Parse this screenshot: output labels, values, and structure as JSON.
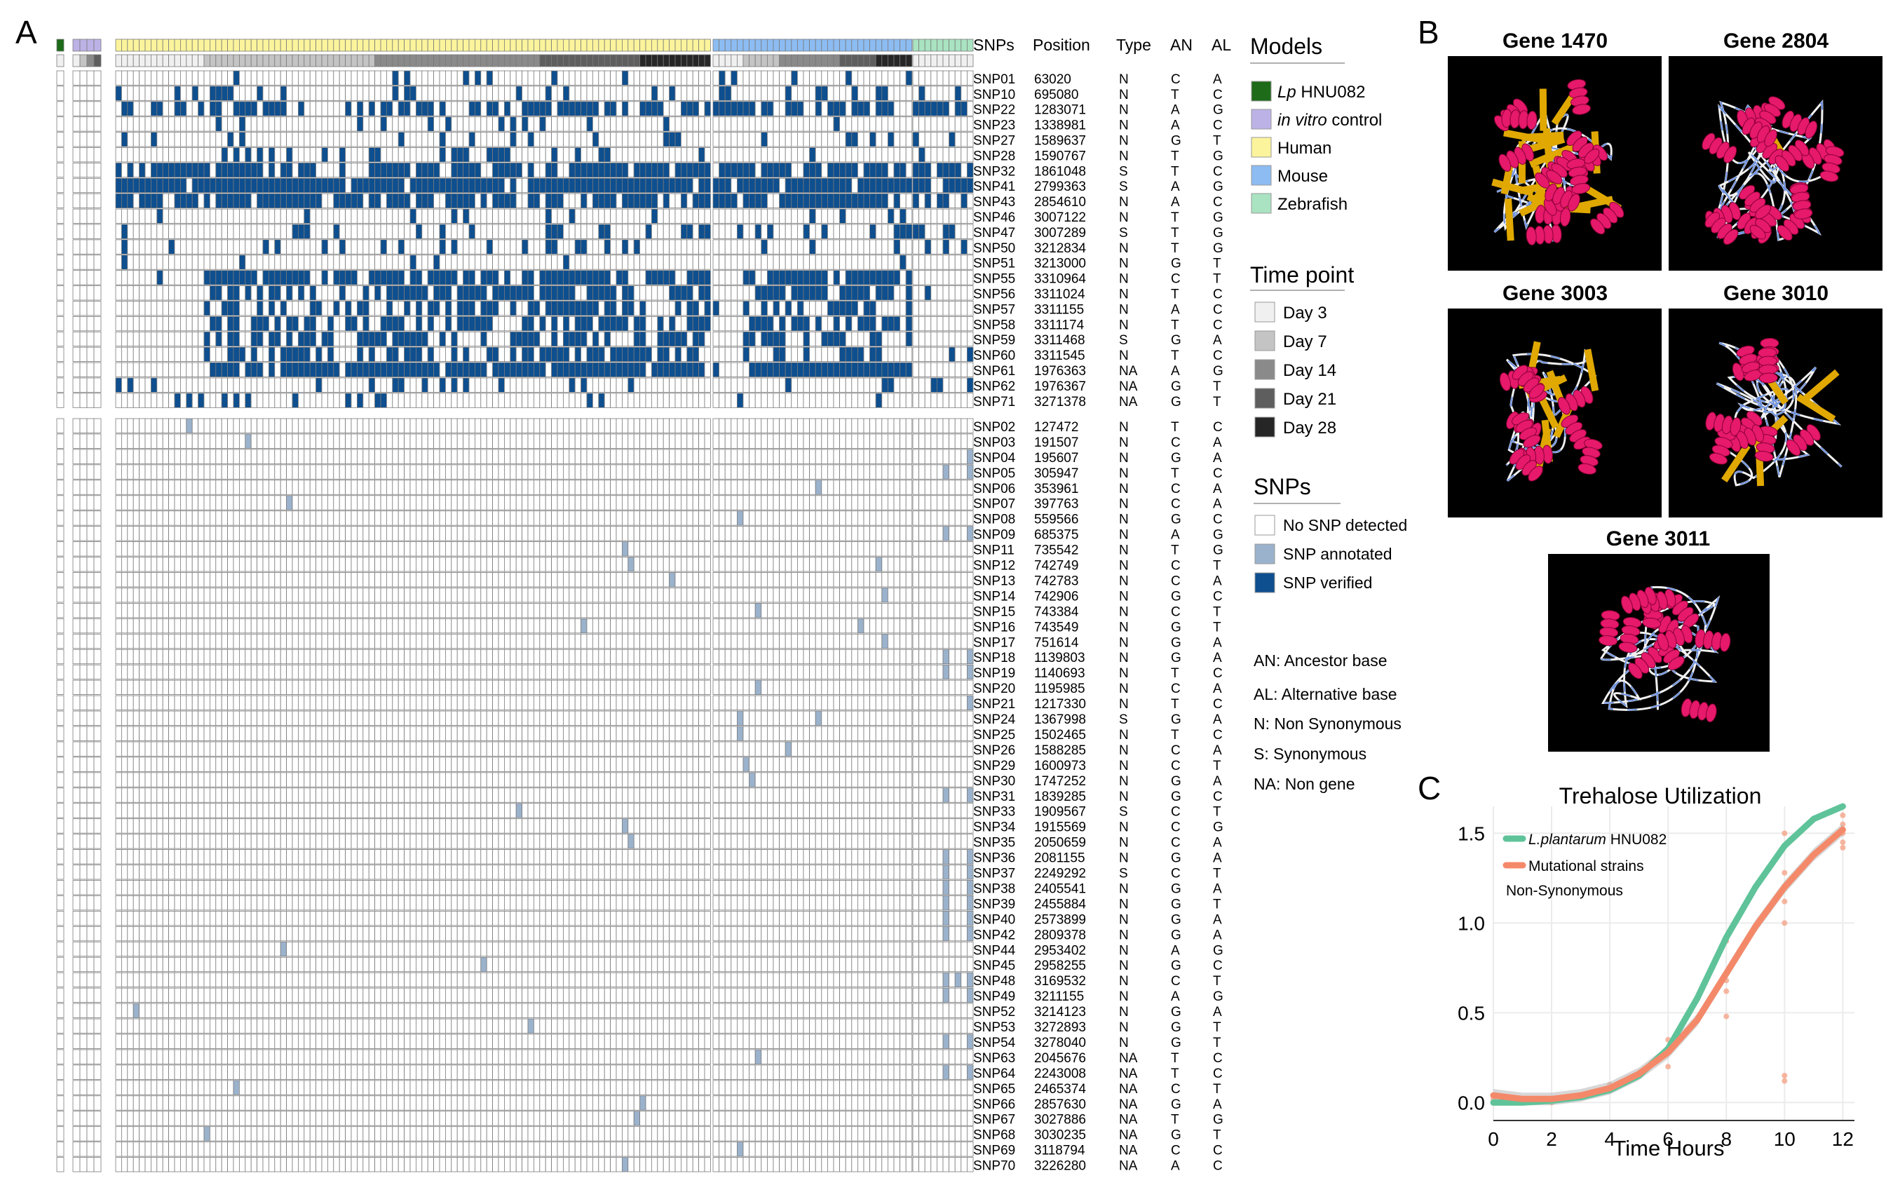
{
  "panels": {
    "a": "A",
    "b": "B",
    "c": "C"
  },
  "heatmap": {
    "column_headers": [
      "SNPs",
      "Position",
      "Type",
      "AN",
      "AL"
    ],
    "colors": {
      "verified": "#0e4f8f",
      "annotated": "#9bb2cc",
      "empty": "#ffffff",
      "grid": "#7a7a7a"
    },
    "model_colors": {
      "lp": "#1e6b1a",
      "vitro": "#bdb2e6",
      "human": "#fbf49c",
      "mouse": "#8cbcf2",
      "zebrafish": "#a9e3c1"
    },
    "day_colors": [
      "#f0f0f0",
      "#c4c4c4",
      "#8a8a8a",
      "#5e5e5e",
      "#262626"
    ],
    "groups": [
      {
        "id": "lp",
        "samples": [
          0
        ]
      },
      {
        "id": "vitro",
        "samples": [
          0,
          1,
          2,
          3
        ]
      },
      {
        "id": "human",
        "samples": [
          0,
          0,
          0,
          0,
          0,
          0,
          0,
          0,
          0,
          0,
          0,
          0,
          0,
          0,
          0,
          1,
          1,
          1,
          1,
          1,
          1,
          1,
          1,
          1,
          1,
          1,
          1,
          1,
          1,
          1,
          1,
          1,
          1,
          1,
          1,
          1,
          1,
          1,
          1,
          1,
          1,
          1,
          1,
          1,
          2,
          2,
          2,
          2,
          2,
          2,
          2,
          2,
          2,
          2,
          2,
          2,
          2,
          2,
          2,
          2,
          2,
          2,
          2,
          2,
          2,
          2,
          2,
          2,
          2,
          2,
          2,
          2,
          3,
          3,
          3,
          3,
          3,
          3,
          3,
          3,
          3,
          3,
          3,
          3,
          3,
          3,
          3,
          3,
          3,
          4,
          4,
          4,
          4,
          4,
          4,
          4,
          4,
          4,
          4,
          4,
          4
        ]
      },
      {
        "id": "mouse",
        "samples": [
          0,
          0,
          0,
          0,
          0,
          1,
          1,
          1,
          1,
          1,
          1,
          2,
          2,
          2,
          2,
          2,
          2,
          2,
          2,
          2,
          2,
          3,
          3,
          3,
          3,
          3,
          3,
          4,
          4,
          4,
          4,
          4,
          4
        ]
      },
      {
        "id": "zebrafish",
        "samples": [
          0,
          0,
          0,
          0,
          0,
          0,
          0,
          0,
          0,
          0
        ]
      }
    ],
    "verified_snps": [
      {
        "snp": "SNP01",
        "pos": "63020",
        "type": "N",
        "an": "C",
        "al": "A",
        "density": 0.14
      },
      {
        "snp": "SNP10",
        "pos": "695080",
        "type": "N",
        "an": "T",
        "al": "C",
        "density": 0.22
      },
      {
        "snp": "SNP22",
        "pos": "1283071",
        "type": "N",
        "an": "A",
        "al": "G",
        "density": 0.62
      },
      {
        "snp": "SNP23",
        "pos": "1338981",
        "type": "N",
        "an": "A",
        "al": "C",
        "density": 0.1
      },
      {
        "snp": "SNP27",
        "pos": "1589637",
        "type": "N",
        "an": "G",
        "al": "T",
        "density": 0.16
      },
      {
        "snp": "SNP28",
        "pos": "1590767",
        "type": "N",
        "an": "T",
        "al": "G",
        "density": 0.14
      },
      {
        "snp": "SNP32",
        "pos": "1861048",
        "type": "S",
        "an": "T",
        "al": "C",
        "density": 0.72
      },
      {
        "snp": "SNP41",
        "pos": "2799363",
        "type": "S",
        "an": "A",
        "al": "G",
        "density": 0.92
      },
      {
        "snp": "SNP43",
        "pos": "2854610",
        "type": "N",
        "an": "A",
        "al": "C",
        "density": 0.74
      },
      {
        "snp": "SNP46",
        "pos": "3007122",
        "type": "N",
        "an": "T",
        "al": "G",
        "density": 0.1
      },
      {
        "snp": "SNP47",
        "pos": "3007289",
        "type": "S",
        "an": "T",
        "al": "G",
        "density": 0.18
      },
      {
        "snp": "SNP50",
        "pos": "3212834",
        "type": "N",
        "an": "T",
        "al": "G",
        "density": 0.14
      },
      {
        "snp": "SNP51",
        "pos": "3213000",
        "type": "N",
        "an": "G",
        "al": "T",
        "density": 0.04
      },
      {
        "snp": "SNP55",
        "pos": "3310964",
        "type": "N",
        "an": "C",
        "al": "T",
        "density": 0.46
      },
      {
        "snp": "SNP56",
        "pos": "3311024",
        "type": "N",
        "an": "T",
        "al": "C",
        "density": 0.44
      },
      {
        "snp": "SNP57",
        "pos": "3311155",
        "type": "N",
        "an": "A",
        "al": "C",
        "density": 0.34
      },
      {
        "snp": "SNP58",
        "pos": "3311174",
        "type": "N",
        "an": "T",
        "al": "C",
        "density": 0.38
      },
      {
        "snp": "SNP59",
        "pos": "3311468",
        "type": "S",
        "an": "G",
        "al": "A",
        "density": 0.36
      },
      {
        "snp": "SNP60",
        "pos": "3311545",
        "type": "N",
        "an": "T",
        "al": "C",
        "density": 0.36
      },
      {
        "snp": "SNP61",
        "pos": "1976363",
        "type": "NA",
        "an": "A",
        "al": "G",
        "density": 0.56
      },
      {
        "snp": "SNP62",
        "pos": "1976367",
        "type": "NA",
        "an": "G",
        "al": "T",
        "density": 0.18
      },
      {
        "snp": "SNP71",
        "pos": "3271378",
        "type": "NA",
        "an": "G",
        "al": "T",
        "density": 0.1
      }
    ],
    "annotated_snps": [
      {
        "snp": "SNP02",
        "pos": "127472",
        "type": "N",
        "an": "T",
        "al": "C",
        "hits": [
          17
        ]
      },
      {
        "snp": "SNP03",
        "pos": "191507",
        "type": "N",
        "an": "C",
        "al": "A",
        "hits": [
          27
        ]
      },
      {
        "snp": "SNP04",
        "pos": "195607",
        "type": "N",
        "an": "G",
        "al": "A",
        "hits": [
          148
        ]
      },
      {
        "snp": "SNP05",
        "pos": "305947",
        "type": "N",
        "an": "T",
        "al": "C",
        "hits": [
          144,
          148
        ]
      },
      {
        "snp": "SNP06",
        "pos": "353961",
        "type": "N",
        "an": "C",
        "al": "A",
        "hits": [
          123
        ]
      },
      {
        "snp": "SNP07",
        "pos": "397763",
        "type": "N",
        "an": "C",
        "al": "A",
        "hits": [
          34
        ]
      },
      {
        "snp": "SNP08",
        "pos": "559566",
        "type": "N",
        "an": "G",
        "al": "C",
        "hits": [
          110
        ]
      },
      {
        "snp": "SNP09",
        "pos": "685375",
        "type": "N",
        "an": "A",
        "al": "G",
        "hits": [
          144,
          148
        ]
      },
      {
        "snp": "SNP11",
        "pos": "735542",
        "type": "N",
        "an": "T",
        "al": "G",
        "hits": [
          91
        ]
      },
      {
        "snp": "SNP12",
        "pos": "742749",
        "type": "N",
        "an": "C",
        "al": "T",
        "hits": [
          92,
          133
        ]
      },
      {
        "snp": "SNP13",
        "pos": "742783",
        "type": "N",
        "an": "C",
        "al": "A",
        "hits": [
          99
        ]
      },
      {
        "snp": "SNP14",
        "pos": "742906",
        "type": "N",
        "an": "G",
        "al": "C",
        "hits": [
          134
        ]
      },
      {
        "snp": "SNP15",
        "pos": "743384",
        "type": "N",
        "an": "C",
        "al": "T",
        "hits": [
          113
        ]
      },
      {
        "snp": "SNP16",
        "pos": "743549",
        "type": "N",
        "an": "G",
        "al": "T",
        "hits": [
          84,
          130
        ]
      },
      {
        "snp": "SNP17",
        "pos": "751614",
        "type": "N",
        "an": "G",
        "al": "A",
        "hits": [
          134
        ]
      },
      {
        "snp": "SNP18",
        "pos": "1139803",
        "type": "N",
        "an": "G",
        "al": "A",
        "hits": [
          144,
          148
        ]
      },
      {
        "snp": "SNP19",
        "pos": "1140693",
        "type": "N",
        "an": "T",
        "al": "C",
        "hits": [
          144,
          148
        ]
      },
      {
        "snp": "SNP20",
        "pos": "1195985",
        "type": "N",
        "an": "C",
        "al": "A",
        "hits": [
          113
        ]
      },
      {
        "snp": "SNP21",
        "pos": "1217330",
        "type": "N",
        "an": "T",
        "al": "C",
        "hits": [
          148
        ]
      },
      {
        "snp": "SNP24",
        "pos": "1367998",
        "type": "S",
        "an": "G",
        "al": "A",
        "hits": [
          110,
          123
        ]
      },
      {
        "snp": "SNP25",
        "pos": "1502465",
        "type": "N",
        "an": "T",
        "al": "C",
        "hits": [
          110
        ]
      },
      {
        "snp": "SNP26",
        "pos": "1588285",
        "type": "N",
        "an": "C",
        "al": "A",
        "hits": [
          118
        ]
      },
      {
        "snp": "SNP29",
        "pos": "1600973",
        "type": "N",
        "an": "C",
        "al": "T",
        "hits": [
          111
        ]
      },
      {
        "snp": "SNP30",
        "pos": "1747252",
        "type": "N",
        "an": "G",
        "al": "A",
        "hits": [
          112
        ]
      },
      {
        "snp": "SNP31",
        "pos": "1839285",
        "type": "N",
        "an": "G",
        "al": "C",
        "hits": [
          144,
          148
        ]
      },
      {
        "snp": "SNP33",
        "pos": "1909567",
        "type": "S",
        "an": "C",
        "al": "T",
        "hits": [
          73
        ]
      },
      {
        "snp": "SNP34",
        "pos": "1915569",
        "type": "N",
        "an": "C",
        "al": "G",
        "hits": [
          91
        ]
      },
      {
        "snp": "SNP35",
        "pos": "2050659",
        "type": "N",
        "an": "C",
        "al": "A",
        "hits": [
          92
        ]
      },
      {
        "snp": "SNP36",
        "pos": "2081155",
        "type": "N",
        "an": "G",
        "al": "A",
        "hits": [
          144,
          148
        ]
      },
      {
        "snp": "SNP37",
        "pos": "2249292",
        "type": "S",
        "an": "C",
        "al": "T",
        "hits": [
          144,
          148
        ]
      },
      {
        "snp": "SNP38",
        "pos": "2405541",
        "type": "N",
        "an": "G",
        "al": "A",
        "hits": [
          144,
          148
        ]
      },
      {
        "snp": "SNP39",
        "pos": "2455884",
        "type": "N",
        "an": "G",
        "al": "T",
        "hits": [
          144,
          148
        ]
      },
      {
        "snp": "SNP40",
        "pos": "2573899",
        "type": "N",
        "an": "G",
        "al": "A",
        "hits": [
          144,
          148
        ]
      },
      {
        "snp": "SNP42",
        "pos": "2809378",
        "type": "N",
        "an": "G",
        "al": "A",
        "hits": [
          144,
          148
        ]
      },
      {
        "snp": "SNP44",
        "pos": "2953402",
        "type": "N",
        "an": "A",
        "al": "G",
        "hits": [
          33
        ]
      },
      {
        "snp": "SNP45",
        "pos": "2958255",
        "type": "N",
        "an": "G",
        "al": "C",
        "hits": [
          67
        ]
      },
      {
        "snp": "SNP48",
        "pos": "3169532",
        "type": "N",
        "an": "C",
        "al": "T",
        "hits": [
          144,
          146,
          148
        ]
      },
      {
        "snp": "SNP49",
        "pos": "3211155",
        "type": "N",
        "an": "A",
        "al": "G",
        "hits": [
          144,
          148
        ]
      },
      {
        "snp": "SNP52",
        "pos": "3214123",
        "type": "N",
        "an": "G",
        "al": "A",
        "hits": [
          8,
          150
        ]
      },
      {
        "snp": "SNP53",
        "pos": "3272893",
        "type": "N",
        "an": "G",
        "al": "T",
        "hits": [
          75
        ]
      },
      {
        "snp": "SNP54",
        "pos": "3278040",
        "type": "N",
        "an": "G",
        "al": "T",
        "hits": [
          144,
          148
        ]
      },
      {
        "snp": "SNP63",
        "pos": "2045676",
        "type": "NA",
        "an": "T",
        "al": "C",
        "hits": [
          113
        ]
      },
      {
        "snp": "SNP64",
        "pos": "2243008",
        "type": "NA",
        "an": "T",
        "al": "C",
        "hits": [
          144,
          148
        ]
      },
      {
        "snp": "SNP65",
        "pos": "2465374",
        "type": "NA",
        "an": "C",
        "al": "T",
        "hits": [
          25
        ]
      },
      {
        "snp": "SNP66",
        "pos": "2857630",
        "type": "NA",
        "an": "G",
        "al": "A",
        "hits": [
          94
        ]
      },
      {
        "snp": "SNP67",
        "pos": "3027886",
        "type": "NA",
        "an": "T",
        "al": "G",
        "hits": [
          93
        ]
      },
      {
        "snp": "SNP68",
        "pos": "3030235",
        "type": "NA",
        "an": "G",
        "al": "T",
        "hits": [
          20
        ]
      },
      {
        "snp": "SNP69",
        "pos": "3118794",
        "type": "NA",
        "an": "C",
        "al": "C",
        "hits": [
          110
        ]
      },
      {
        "snp": "SNP70",
        "pos": "3226280",
        "type": "NA",
        "an": "A",
        "al": "C",
        "hits": [
          91
        ]
      }
    ]
  },
  "legend": {
    "models_title": "Models",
    "models": [
      {
        "label": "Lp HNU082",
        "color": "#1e6b1a",
        "italic": "Lp"
      },
      {
        "label": "in vitro control",
        "color": "#bdb2e6",
        "italic": "in vitro"
      },
      {
        "label": "Human",
        "color": "#fbf49c",
        "italic": ""
      },
      {
        "label": "Mouse",
        "color": "#8cbcf2",
        "italic": ""
      },
      {
        "label": "Zebrafish",
        "color": "#a9e3c1",
        "italic": ""
      }
    ],
    "time_title": "Time point",
    "time": [
      {
        "label": "Day 3",
        "color": "#f0f0f0"
      },
      {
        "label": "Day 7",
        "color": "#c4c4c4"
      },
      {
        "label": "Day 14",
        "color": "#8a8a8a"
      },
      {
        "label": "Day 21",
        "color": "#5e5e5e"
      },
      {
        "label": "Day 28",
        "color": "#262626"
      }
    ],
    "snps_title": "SNPs",
    "snps": [
      {
        "label": "No SNP detected",
        "color": "#ffffff"
      },
      {
        "label": "SNP annotated",
        "color": "#9bb2cc"
      },
      {
        "label": "SNP verified",
        "color": "#0e4f8f"
      }
    ],
    "abbreviations": [
      "AN: Ancestor base",
      "AL: Alternative base",
      "N: Non Synonymous",
      "S: Synonymous",
      "NA: Non gene"
    ]
  },
  "proteins": {
    "genes": [
      "Gene 1470",
      "Gene 2804",
      "Gene 3003",
      "Gene 3010",
      "Gene 3011"
    ]
  },
  "chart_data": {
    "type": "line",
    "title": "Trehalose Utilization",
    "xlabel": "Time Hours",
    "ylabel": "",
    "xlim": [
      0,
      12.4
    ],
    "ylim": [
      -0.1,
      1.65
    ],
    "xticks": [
      0,
      2,
      4,
      6,
      8,
      10,
      12
    ],
    "yticks": [
      "0.0",
      "0.5",
      "1.0",
      "1.5"
    ],
    "ytick_values": [
      0.0,
      0.5,
      1.0,
      1.5
    ],
    "legend_note": "Non-Synonymous",
    "series": [
      {
        "name": "L.plantarum HNU082",
        "color": "#5fc39a",
        "x": [
          0,
          1,
          2,
          3,
          4,
          5,
          6,
          7,
          8,
          9,
          10,
          11,
          12
        ],
        "y": [
          0.0,
          0.0,
          0.01,
          0.03,
          0.07,
          0.15,
          0.3,
          0.58,
          0.92,
          1.2,
          1.43,
          1.58,
          1.65
        ]
      },
      {
        "name": "Mutational strains",
        "color": "#f4896a",
        "x": [
          0,
          1,
          2,
          3,
          4,
          5,
          6,
          7,
          8,
          9,
          10,
          11,
          12
        ],
        "y": [
          0.04,
          0.02,
          0.02,
          0.04,
          0.08,
          0.16,
          0.28,
          0.46,
          0.72,
          0.98,
          1.2,
          1.38,
          1.52
        ]
      }
    ],
    "scatter_points": [
      {
        "x": 0,
        "y": 0.0
      },
      {
        "x": 0,
        "y": 0.02
      },
      {
        "x": 2,
        "y": 0.02
      },
      {
        "x": 2,
        "y": 0.0
      },
      {
        "x": 4,
        "y": 0.08
      },
      {
        "x": 4,
        "y": 0.1
      },
      {
        "x": 6,
        "y": 0.3
      },
      {
        "x": 6,
        "y": 0.2
      },
      {
        "x": 6,
        "y": 0.35
      },
      {
        "x": 8,
        "y": 0.72
      },
      {
        "x": 8,
        "y": 0.68
      },
      {
        "x": 8,
        "y": 0.9
      },
      {
        "x": 8,
        "y": 0.48
      },
      {
        "x": 8,
        "y": 0.62
      },
      {
        "x": 10,
        "y": 1.28
      },
      {
        "x": 10,
        "y": 1.12
      },
      {
        "x": 10,
        "y": 0.15
      },
      {
        "x": 10,
        "y": 0.12
      },
      {
        "x": 10,
        "y": 1.5
      },
      {
        "x": 10,
        "y": 1.0
      },
      {
        "x": 12,
        "y": 1.45
      },
      {
        "x": 12,
        "y": 1.55
      },
      {
        "x": 12,
        "y": 1.6
      },
      {
        "x": 12,
        "y": 1.5
      },
      {
        "x": 12,
        "y": 1.42
      }
    ]
  }
}
